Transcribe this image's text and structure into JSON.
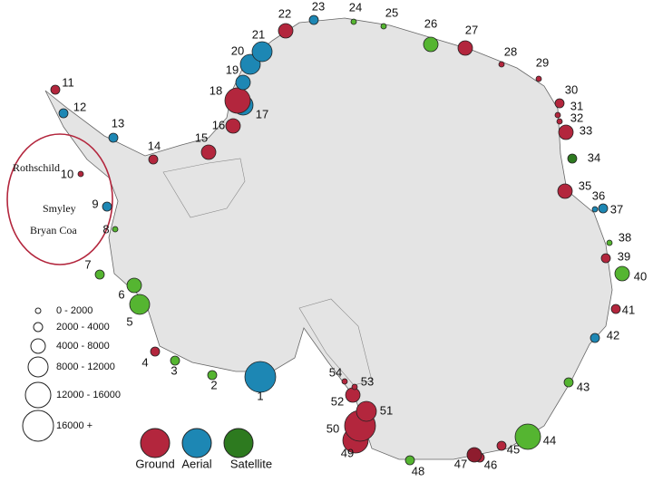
{
  "map": {
    "place_names": [
      "Rothschild",
      "Smyley",
      "Bryan Coa"
    ],
    "size_legend": [
      "0 - 2000",
      "2000 - 4000",
      "4000 - 8000",
      "8000 - 12000",
      "12000 - 16000",
      "16000 +"
    ],
    "type_legend": [
      {
        "name": "Ground",
        "color": "#b3263d"
      },
      {
        "name": "Aerial",
        "color": "#1d87b4"
      },
      {
        "name": "Satellite",
        "color": "#2d7a1f"
      }
    ],
    "sites": [
      {
        "label": "1",
        "category": "Aerial",
        "color": "#1d87b4",
        "size": "16000 +"
      },
      {
        "label": "2",
        "category": "Satellite",
        "color": "#55b531",
        "size": "2000 - 4000"
      },
      {
        "label": "3",
        "category": "Satellite",
        "color": "#55b531",
        "size": "2000 - 4000"
      },
      {
        "label": "4",
        "category": "Ground",
        "color": "#b3263d",
        "size": "2000 - 4000"
      },
      {
        "label": "5",
        "category": "Satellite",
        "color": "#55b531",
        "size": "8000 - 12000"
      },
      {
        "label": "6",
        "category": "Satellite",
        "color": "#55b531",
        "size": "4000 - 8000"
      },
      {
        "label": "7",
        "category": "Satellite",
        "color": "#55b531",
        "size": "2000 - 4000"
      },
      {
        "label": "8",
        "category": "Satellite",
        "color": "#55b531",
        "size": "0 - 2000"
      },
      {
        "label": "9",
        "category": "Aerial",
        "color": "#1d87b4",
        "size": "2000 - 4000"
      },
      {
        "label": "10",
        "category": "Ground",
        "color": "#b3263d",
        "size": "0 - 2000"
      },
      {
        "label": "11",
        "category": "Ground",
        "color": "#b3263d",
        "size": "2000 - 4000"
      },
      {
        "label": "12",
        "category": "Aerial",
        "color": "#1d87b4",
        "size": "2000 - 4000"
      },
      {
        "label": "13",
        "category": "Aerial",
        "color": "#1d87b4",
        "size": "2000 - 4000"
      },
      {
        "label": "14",
        "category": "Ground",
        "color": "#b3263d",
        "size": "2000 - 4000"
      },
      {
        "label": "15",
        "category": "Ground",
        "color": "#b3263d",
        "size": "4000 - 8000"
      },
      {
        "label": "16",
        "category": "Ground",
        "color": "#b3263d",
        "size": "4000 - 8000"
      },
      {
        "label": "17",
        "category": "Aerial",
        "color": "#1d87b4",
        "size": "8000 - 12000"
      },
      {
        "label": "18",
        "category": "Ground",
        "color": "#b3263d",
        "size": "12000 - 16000"
      },
      {
        "label": "19",
        "category": "Aerial",
        "color": "#1d87b4",
        "size": "4000 - 8000"
      },
      {
        "label": "20",
        "category": "Aerial",
        "color": "#1d87b4",
        "size": "8000 - 12000"
      },
      {
        "label": "21",
        "category": "Aerial",
        "color": "#1d87b4",
        "size": "8000 - 12000"
      },
      {
        "label": "22",
        "category": "Ground",
        "color": "#b3263d",
        "size": "4000 - 8000"
      },
      {
        "label": "23",
        "category": "Aerial",
        "color": "#1d87b4",
        "size": "2000 - 4000"
      },
      {
        "label": "24",
        "category": "Satellite",
        "color": "#55b531",
        "size": "0 - 2000"
      },
      {
        "label": "25",
        "category": "Satellite",
        "color": "#55b531",
        "size": "0 - 2000"
      },
      {
        "label": "26",
        "category": "Satellite",
        "color": "#55b531",
        "size": "4000 - 8000"
      },
      {
        "label": "27",
        "category": "Ground",
        "color": "#b3263d",
        "size": "4000 - 8000"
      },
      {
        "label": "28",
        "category": "Ground",
        "color": "#b3263d",
        "size": "0 - 2000"
      },
      {
        "label": "29",
        "category": "Ground",
        "color": "#b3263d",
        "size": "0 - 2000"
      },
      {
        "label": "30",
        "category": "Ground",
        "color": "#b3263d",
        "size": "2000 - 4000"
      },
      {
        "label": "31",
        "category": "Ground",
        "color": "#b3263d",
        "size": "0 - 2000"
      },
      {
        "label": "32",
        "category": "Ground",
        "color": "#b3263d",
        "size": "0 - 2000"
      },
      {
        "label": "33",
        "category": "Ground",
        "color": "#b3263d",
        "size": "4000 - 8000"
      },
      {
        "label": "34",
        "category": "Satellite",
        "color": "#2d7a1f",
        "size": "2000 - 4000"
      },
      {
        "label": "35",
        "category": "Ground",
        "color": "#b3263d",
        "size": "4000 - 8000"
      },
      {
        "label": "36",
        "category": "Aerial",
        "color": "#1d87b4",
        "size": "0 - 2000"
      },
      {
        "label": "37",
        "category": "Aerial",
        "color": "#1d87b4",
        "size": "2000 - 4000"
      },
      {
        "label": "38",
        "category": "Satellite",
        "color": "#55b531",
        "size": "0 - 2000"
      },
      {
        "label": "39",
        "category": "Ground",
        "color": "#b3263d",
        "size": "2000 - 4000"
      },
      {
        "label": "40",
        "category": "Satellite",
        "color": "#55b531",
        "size": "4000 - 8000"
      },
      {
        "label": "41",
        "category": "Ground",
        "color": "#b3263d",
        "size": "2000 - 4000"
      },
      {
        "label": "42",
        "category": "Aerial",
        "color": "#1d87b4",
        "size": "2000 - 4000"
      },
      {
        "label": "43",
        "category": "Satellite",
        "color": "#55b531",
        "size": "2000 - 4000"
      },
      {
        "label": "44",
        "category": "Satellite",
        "color": "#55b531",
        "size": "12000 - 16000"
      },
      {
        "label": "45",
        "category": "Ground",
        "color": "#b3263d",
        "size": "2000 - 4000"
      },
      {
        "label": "46",
        "category": "Ground",
        "color": "#b3263d",
        "size": "2000 - 4000"
      },
      {
        "label": "47",
        "category": "Ground",
        "color": "#8e1c2e",
        "size": "4000 - 8000"
      },
      {
        "label": "48",
        "category": "Satellite",
        "color": "#55b531",
        "size": "2000 - 4000"
      },
      {
        "label": "49",
        "category": "Ground",
        "color": "#b3263d",
        "size": "12000 - 16000"
      },
      {
        "label": "50",
        "category": "Ground",
        "color": "#b3263d",
        "size": "16000 +"
      },
      {
        "label": "51",
        "category": "Ground",
        "color": "#b3263d",
        "size": "8000 - 12000"
      },
      {
        "label": "52",
        "category": "Ground",
        "color": "#b3263d",
        "size": "4000 - 8000"
      },
      {
        "label": "53",
        "category": "Ground",
        "color": "#b3263d",
        "size": "0 - 2000"
      },
      {
        "label": "54",
        "category": "Ground",
        "color": "#b3263d",
        "size": "0 - 2000"
      }
    ]
  }
}
